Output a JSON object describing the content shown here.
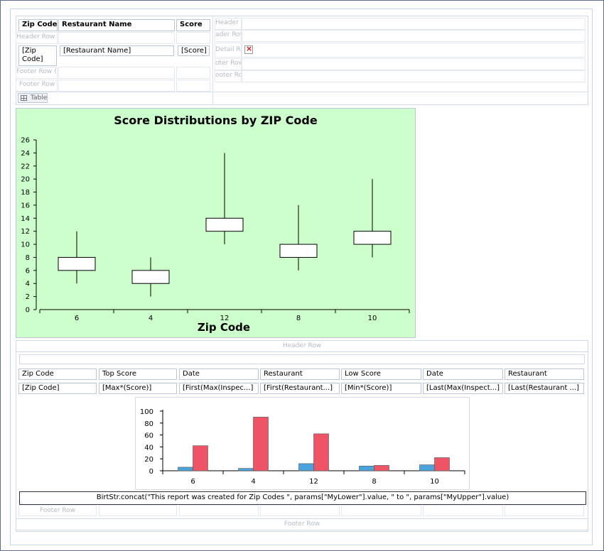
{
  "top_table": {
    "headers": [
      "Zip Code",
      "Restaurant Name",
      "Score"
    ],
    "group_header": "Header Row (Zi",
    "detail": [
      "[Zip Code]",
      "[Restaurant Name]",
      "[Score]"
    ],
    "group_footer": "Footer Row (Zi",
    "footer": "Footer Row",
    "tab_label": "Table"
  },
  "side_table": {
    "rows": [
      "Header Ro",
      "ader Row",
      "Detail Row",
      "oter Row (",
      "ooter Row"
    ]
  },
  "chart1": {
    "chart_data": {
      "type": "boxplot",
      "title": "Score Distributions by ZIP Code",
      "xlabel": "Zip Code",
      "ylabel": "",
      "categories": [
        "6",
        "4",
        "12",
        "8",
        "10"
      ],
      "whisker_low": [
        4,
        2,
        10,
        6,
        8
      ],
      "box_low": [
        6,
        4,
        12,
        8,
        10
      ],
      "box_high": [
        8,
        6,
        14,
        10,
        12
      ],
      "whisker_high": [
        12,
        8,
        24,
        16,
        20
      ],
      "ylim": [
        0,
        26
      ],
      "yticks": [
        "0",
        "2",
        "4",
        "6",
        "8",
        "10",
        "12",
        "14",
        "16",
        "18",
        "20",
        "22",
        "24",
        "26"
      ],
      "background": "#ccffcc",
      "grid": false
    }
  },
  "list": {
    "header_row": "Header Row",
    "footer_row": "Footer Row",
    "inner_footer_row": "Footer Row",
    "columns": [
      "Zip Code",
      "Top Score",
      "Date",
      "Restaurant",
      "Low Score",
      "Date",
      "Restaurant"
    ],
    "values": [
      "[Zip Code]",
      "[Max*(Score)]",
      "[First(Max(Inspec...]",
      "[First(Restaurant...]",
      "[Min*(Score)]",
      "[Last(Max(Inspect...]",
      "[Last(Restaurant ...]"
    ],
    "footnote": "BirtStr.concat(\"This report was created for Zip Codes \", params[\"MyLower\"].value, \" to \", params[\"MyUpper\"].value)"
  },
  "chart2": {
    "chart_data": {
      "type": "bar",
      "categories": [
        "6",
        "4",
        "12",
        "8",
        "10"
      ],
      "series": [
        {
          "values": [
            6,
            4,
            12,
            8,
            10
          ],
          "color": "#4ba3dd"
        },
        {
          "values": [
            42,
            90,
            62,
            9,
            22
          ],
          "color": "#ef5366"
        }
      ],
      "ylim": [
        0,
        100
      ],
      "yticks": [
        "0",
        "20",
        "40",
        "60",
        "80",
        "100"
      ],
      "grid": false
    }
  }
}
